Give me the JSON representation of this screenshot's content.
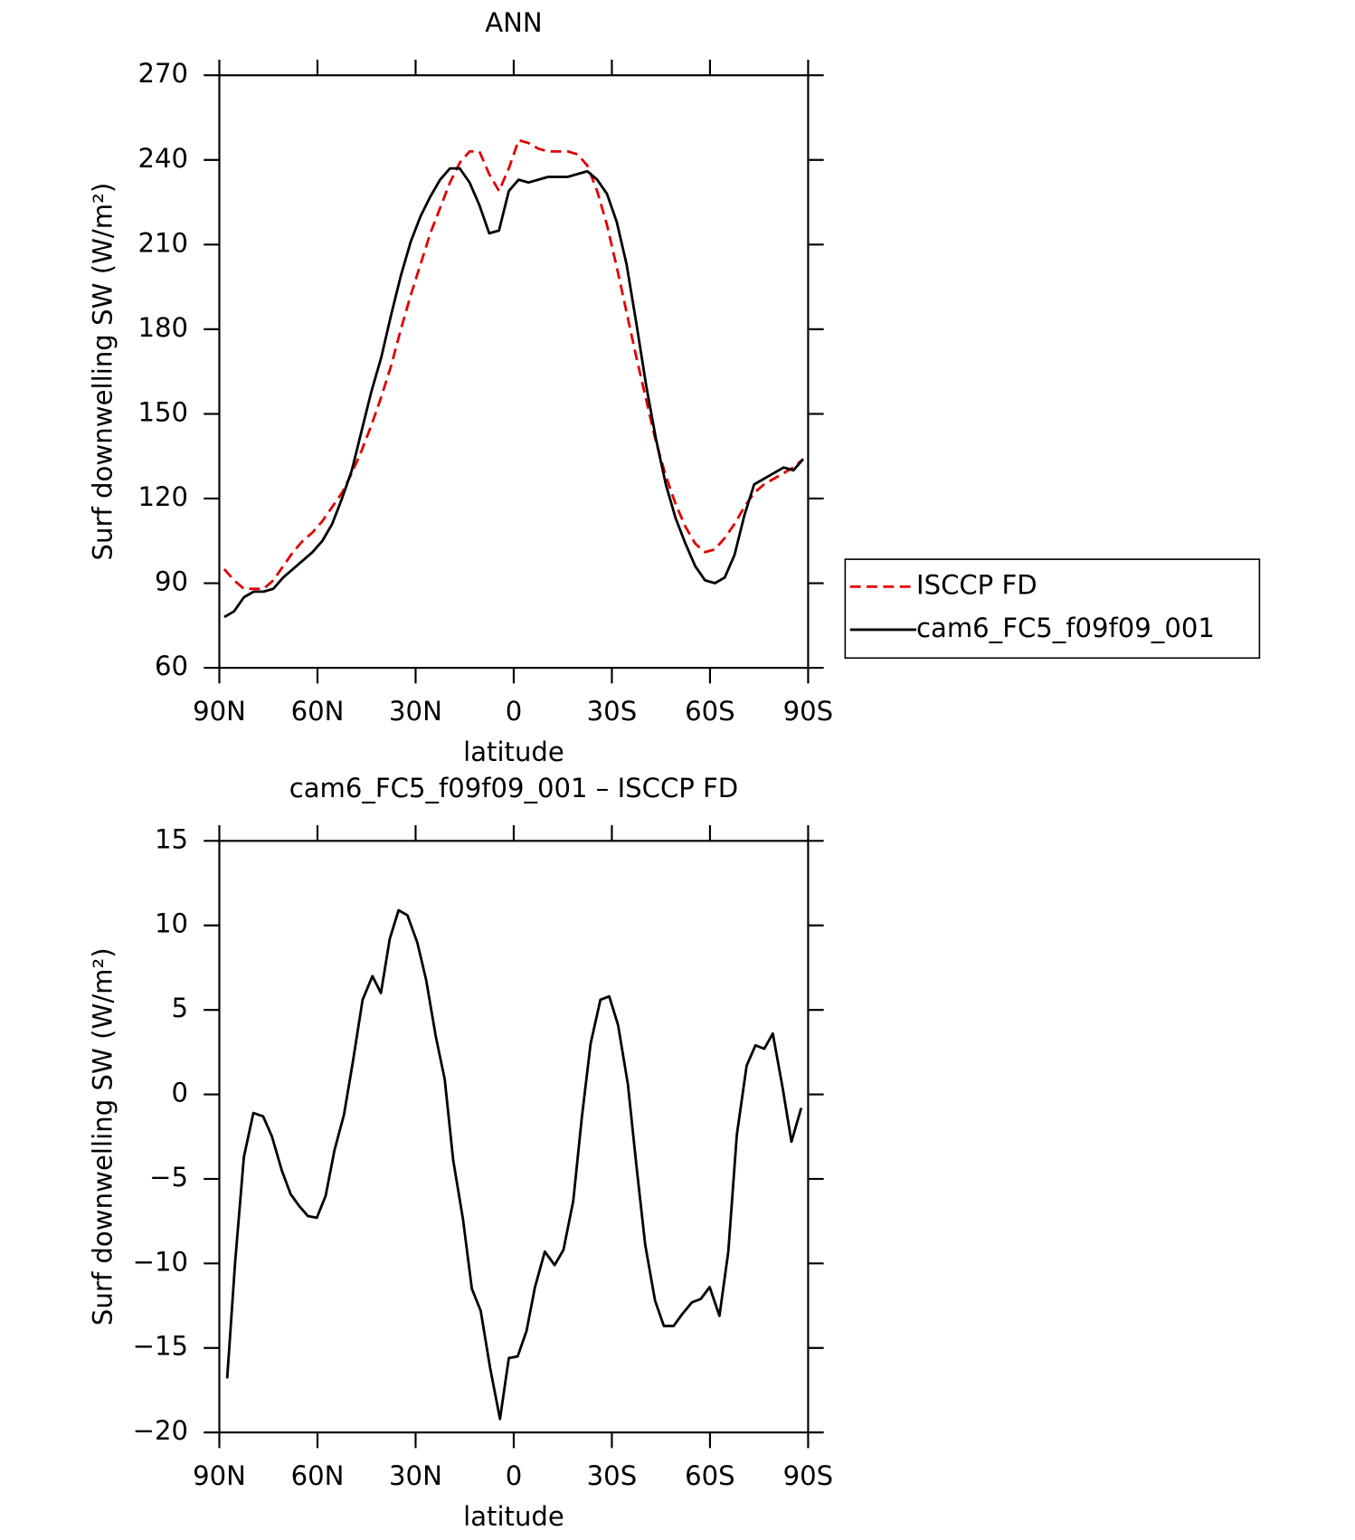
{
  "chart_data": [
    {
      "type": "line",
      "title": "ANN",
      "xlabel": "latitude",
      "ylabel": "Surf downwelling SW (W/m²)",
      "xlim": [
        90,
        -90
      ],
      "xticks": [
        {
          "value": 90,
          "label": "90N"
        },
        {
          "value": 60,
          "label": "60N"
        },
        {
          "value": 30,
          "label": "30N"
        },
        0,
        {
          "value": -30,
          "label": "30S"
        },
        {
          "value": -60,
          "label": "60S"
        },
        {
          "value": -90,
          "label": "90S"
        }
      ],
      "ylim": [
        60,
        270
      ],
      "yticks": [
        60,
        90,
        120,
        150,
        180,
        210,
        240,
        270
      ],
      "legend": "outside-right",
      "x": [
        88.5,
        85.5,
        82.5,
        79.5,
        76.5,
        73.5,
        70.5,
        67.5,
        64.5,
        61.5,
        58.5,
        55.5,
        52.5,
        49.5,
        46.5,
        43.5,
        40.5,
        37.5,
        34.5,
        31.5,
        28.5,
        25.5,
        22.5,
        19.5,
        16.5,
        13.5,
        10.5,
        7.5,
        4.5,
        1.5,
        -1.5,
        -4.5,
        -7.5,
        -10.5,
        -13.5,
        -16.5,
        -19.5,
        -22.5,
        -25.5,
        -28.5,
        -31.5,
        -34.5,
        -37.5,
        -40.5,
        -43.5,
        -46.5,
        -49.5,
        -52.5,
        -55.5,
        -58.5,
        -61.5,
        -64.5,
        -67.5,
        -70.5,
        -73.5,
        -76.5,
        -79.5,
        -82.5,
        -85.5,
        -88.5
      ],
      "series": [
        {
          "name": "ISCCP FD",
          "color": "#e00000",
          "dashed": true,
          "values": [
            95,
            91,
            88,
            88,
            88,
            91,
            96,
            101,
            105,
            108,
            112,
            117,
            122,
            129,
            137,
            146,
            156,
            167,
            180,
            192,
            203,
            214,
            223,
            232,
            239,
            243,
            243,
            235,
            229,
            237,
            247,
            246,
            244,
            243,
            243,
            243,
            242,
            238,
            229,
            217,
            202,
            186,
            170,
            155,
            140,
            128,
            118,
            110,
            104,
            101,
            102,
            106,
            111,
            117,
            122,
            125,
            127,
            129,
            131,
            134
          ]
        },
        {
          "name": "cam6_FC5_f09f09_001",
          "color": "#000000",
          "dashed": false,
          "values": [
            78,
            80,
            85,
            87,
            87,
            88,
            92,
            95,
            98,
            101,
            105,
            111,
            120,
            130,
            144,
            158,
            170,
            185,
            199,
            211,
            220,
            227,
            233,
            237,
            237,
            232,
            224,
            214,
            215,
            229,
            233,
            232,
            233,
            234,
            234,
            234,
            235,
            236,
            233,
            228,
            218,
            203,
            182,
            160,
            141,
            125,
            113,
            104,
            96,
            91,
            90,
            92,
            100,
            114,
            125,
            127,
            129,
            131,
            130,
            134
          ]
        }
      ]
    },
    {
      "type": "line",
      "title": "cam6_FC5_f09f09_001 – ISCCP FD",
      "xlabel": "latitude",
      "ylabel": "Surf downwelling SW (W/m²)",
      "xlim": [
        90,
        -90
      ],
      "xticks": [
        {
          "value": 90,
          "label": "90N"
        },
        {
          "value": 60,
          "label": "60N"
        },
        {
          "value": 30,
          "label": "30N"
        },
        0,
        {
          "value": -30,
          "label": "30S"
        },
        {
          "value": -60,
          "label": "60S"
        },
        {
          "value": -90,
          "label": "90S"
        }
      ],
      "ylim": [
        -20,
        15
      ],
      "yticks": [
        {
          "value": -20,
          "label": "−20"
        },
        {
          "value": -15,
          "label": "−15"
        },
        {
          "value": -10,
          "label": "−10"
        },
        {
          "value": -5,
          "label": "−5"
        },
        0,
        5,
        10,
        15
      ],
      "x": [
        87.6,
        85.2,
        82.5,
        79.6,
        76.6,
        73.9,
        70.9,
        68.2,
        65.6,
        62.9,
        60.2,
        57.5,
        54.8,
        51.9,
        49.2,
        46.2,
        43.2,
        40.6,
        37.9,
        35.2,
        32.5,
        29.5,
        26.8,
        23.8,
        21.1,
        18.5,
        15.5,
        12.8,
        10.1,
        7.2,
        4.2,
        1.5,
        -1.2,
        -3.9,
        -6.5,
        -9.5,
        -12.5,
        -15.2,
        -18.2,
        -20.8,
        -23.5,
        -26.5,
        -29.2,
        -31.9,
        -34.9,
        -37.5,
        -40.2,
        -43.2,
        -45.9,
        -48.9,
        -51.5,
        -54.5,
        -57.2,
        -59.9,
        -62.9,
        -65.6,
        -68.2,
        -71.2,
        -73.9,
        -76.6,
        -79.2,
        -82.2,
        -84.9,
        -87.9
      ],
      "series": [
        {
          "color": "#000000",
          "dashed": false,
          "values": [
            -16.8,
            -10,
            -3.7,
            -1.1,
            -1.3,
            -2.5,
            -4.5,
            -5.9,
            -6.6,
            -7.2,
            -7.3,
            -6,
            -3.3,
            -1.2,
            1.9,
            5.6,
            7.0,
            6.0,
            9.2,
            10.9,
            10.6,
            9.0,
            6.8,
            3.4,
            0.9,
            -3.9,
            -7.4,
            -11.5,
            -12.8,
            -16.2,
            -19.2,
            -15.6,
            -15.5,
            -14.0,
            -11.4,
            -9.3,
            -10.1,
            -9.2,
            -6.3,
            -1.4,
            3.0,
            5.6,
            5.8,
            4.1,
            0.6,
            -4.2,
            -8.9,
            -12.2,
            -13.7,
            -13.7,
            -13.0,
            -12.3,
            -12.1,
            -11.4,
            -13.1,
            -9.3,
            -2.4,
            1.7,
            2.9,
            2.7,
            3.6,
            0.4,
            -2.8,
            -0.8
          ]
        }
      ]
    }
  ]
}
